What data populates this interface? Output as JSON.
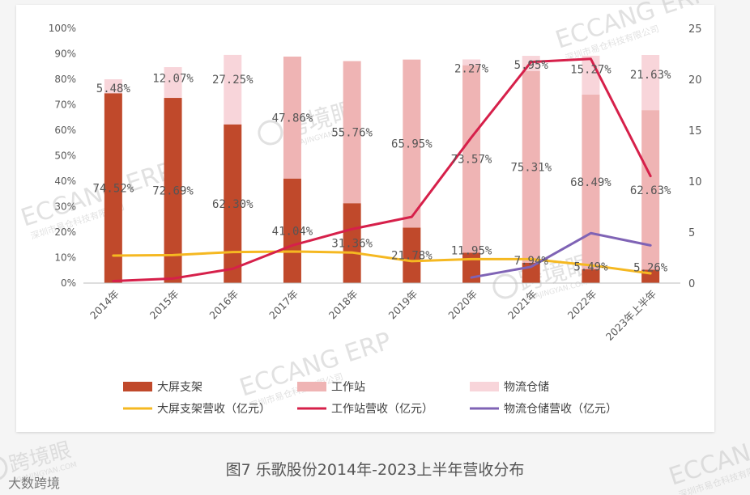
{
  "caption": "图7  乐歌股份2014年-2023上半年营收分布",
  "footer_brand": "大数跨境",
  "watermarks": {
    "eccang": "ECCANG ERP",
    "eccang_sub": "深圳市易仓科技有限公司",
    "kuajing": "跨境眼",
    "kuajing_sub": "KUAJINGYAN.COM"
  },
  "chart_data": {
    "type": "bar",
    "stacked": true,
    "categories": [
      "2014年",
      "2015年",
      "2016年",
      "2017年",
      "2018年",
      "2019年",
      "2020年",
      "2021年",
      "2022年",
      "2023年上半年"
    ],
    "left_axis": {
      "ticks": [
        "0%",
        "10%",
        "20%",
        "30%",
        "40%",
        "50%",
        "60%",
        "70%",
        "80%",
        "90%",
        "100%"
      ],
      "ylim": [
        0,
        100
      ]
    },
    "right_axis": {
      "ticks": [
        "0",
        "5",
        "10",
        "15",
        "20",
        "25"
      ],
      "ylim": [
        0,
        25
      ]
    },
    "bar_series": [
      {
        "name": "大屏支架",
        "color": "#c0492b",
        "values": [
          74.52,
          72.69,
          62.3,
          41.04,
          31.36,
          21.78,
          11.95,
          7.94,
          5.49,
          5.26
        ],
        "labels": [
          "74.52%",
          "72.69%",
          "62.30%",
          "41.04%",
          "31.36%",
          "21.78%",
          "11.95%",
          "7.94%",
          "5.49%",
          "5.26%"
        ]
      },
      {
        "name": "工作站",
        "color": "#efb4b4",
        "values": [
          0,
          0,
          0,
          47.86,
          55.76,
          65.95,
          73.57,
          75.31,
          68.49,
          62.63
        ],
        "labels": [
          "",
          "",
          "",
          "47.86%",
          "55.76%",
          "65.95%",
          "73.57%",
          "75.31%",
          "68.49%",
          "62.63%"
        ]
      },
      {
        "name": "物流仓储",
        "color": "#f8d5da",
        "values": [
          5.48,
          12.07,
          27.25,
          0,
          0,
          0,
          2.27,
          5.95,
          15.27,
          21.63
        ],
        "labels": [
          "5.48%",
          "12.07%",
          "27.25%",
          "",
          "",
          "",
          "2.27%",
          "5.95%",
          "15.27%",
          "21.63%"
        ]
      }
    ],
    "line_series": [
      {
        "name": "大屏支架营收（亿元）",
        "color": "#f5b821",
        "values": [
          2.7,
          2.75,
          3.05,
          3.1,
          3.0,
          2.15,
          2.35,
          2.35,
          1.75,
          0.95
        ]
      },
      {
        "name": "工作站营收（亿元）",
        "color": "#d6204a",
        "values": [
          0.2,
          0.45,
          1.4,
          3.7,
          5.3,
          6.5,
          14.3,
          21.7,
          22.0,
          10.5
        ]
      },
      {
        "name": "物流仓储营收（亿元）",
        "color": "#7f63b5",
        "values": [
          null,
          null,
          null,
          null,
          null,
          null,
          0.55,
          1.6,
          4.9,
          3.7
        ]
      }
    ],
    "legend": {
      "placement": "bottom",
      "items": [
        {
          "name": "大屏支架",
          "kind": "box",
          "color": "#c0492b"
        },
        {
          "name": "工作站",
          "kind": "box",
          "color": "#efb4b4"
        },
        {
          "name": "物流仓储",
          "kind": "box",
          "color": "#f8d5da"
        },
        {
          "name": "大屏支架营收（亿元）",
          "kind": "line",
          "color": "#f5b821"
        },
        {
          "name": "工作站营收（亿元）",
          "kind": "line",
          "color": "#d6204a"
        },
        {
          "name": "物流仓储营收（亿元）",
          "kind": "line",
          "color": "#7f63b5"
        }
      ]
    },
    "grid": false
  }
}
